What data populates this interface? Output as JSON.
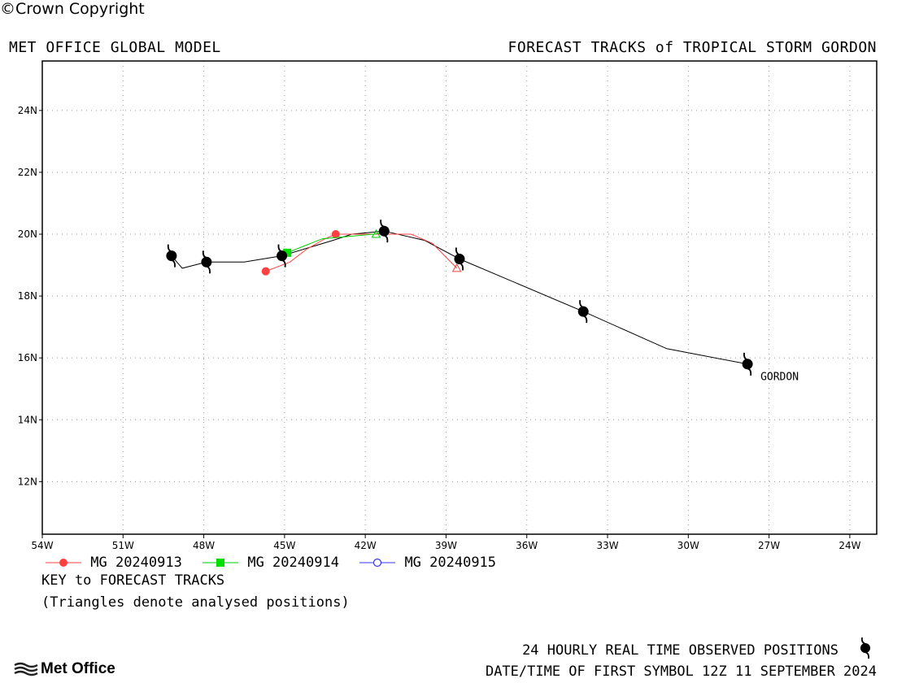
{
  "header": {
    "left_title": "MET OFFICE GLOBAL MODEL",
    "right_title": "FORECAST TRACKS of TROPICAL STORM GORDON"
  },
  "chart_data": {
    "type": "line",
    "xlim": [
      -54,
      -23
    ],
    "ylim": [
      10.3,
      25.6
    ],
    "x_ticks": [
      -54,
      -51,
      -48,
      -45,
      -42,
      -39,
      -36,
      -33,
      -30,
      -27,
      -24
    ],
    "x_tick_labels": [
      "54W",
      "51W",
      "48W",
      "45W",
      "42W",
      "39W",
      "36W",
      "33W",
      "30W",
      "27W",
      "24W"
    ],
    "y_ticks": [
      12,
      14,
      16,
      18,
      20,
      22,
      24
    ],
    "y_tick_labels": [
      "12N",
      "14N",
      "16N",
      "18N",
      "20N",
      "22N",
      "24N"
    ],
    "grid": true,
    "observed_track": {
      "name": "GORDON",
      "color": "#000000",
      "line": [
        [
          -27.8,
          15.8
        ],
        [
          -30.8,
          16.3
        ],
        [
          -33.9,
          17.5
        ],
        [
          -38.5,
          19.2
        ],
        [
          -39.8,
          19.8
        ],
        [
          -41.3,
          20.1
        ],
        [
          -42.5,
          20.0
        ],
        [
          -43.2,
          19.8
        ],
        [
          -45.1,
          19.3
        ],
        [
          -46.5,
          19.1
        ],
        [
          -47.9,
          19.1
        ],
        [
          -48.8,
          18.9
        ],
        [
          -49.2,
          19.3
        ]
      ],
      "symbols": [
        [
          -27.8,
          15.8
        ],
        [
          -33.9,
          17.5
        ],
        [
          -38.5,
          19.2
        ],
        [
          -41.3,
          20.1
        ],
        [
          -45.1,
          19.3
        ],
        [
          -47.9,
          19.1
        ],
        [
          -49.2,
          19.3
        ]
      ]
    },
    "series": [
      {
        "name": "MG 20240913",
        "color": "#ff4040",
        "marker": "circle",
        "points": [
          [
            -45.7,
            18.8
          ],
          [
            -44.8,
            19.1
          ],
          [
            -44.2,
            19.5
          ],
          [
            -43.5,
            19.85
          ],
          [
            -43.1,
            20.0
          ],
          [
            -42.1,
            20.0
          ],
          [
            -40.3,
            20.0
          ],
          [
            -39.5,
            19.7
          ],
          [
            -38.6,
            18.9
          ]
        ],
        "markers": [
          [
            -45.7,
            18.8
          ],
          [
            -43.1,
            20.0
          ]
        ],
        "analysed": [
          [
            -38.6,
            18.9
          ]
        ]
      },
      {
        "name": "MG 20240914",
        "color": "#00cc00",
        "marker": "square",
        "points": [
          [
            -44.9,
            19.4
          ],
          [
            -43.6,
            19.85
          ],
          [
            -41.7,
            20.0
          ],
          [
            -41.3,
            20.05
          ]
        ],
        "markers": [
          [
            -44.9,
            19.4
          ]
        ],
        "analysed": [
          [
            -41.6,
            20.0
          ]
        ]
      },
      {
        "name": "MG 20240915",
        "color": "#3333ff",
        "marker": "open-circle",
        "points": [],
        "markers": [],
        "analysed": []
      }
    ],
    "annotations": [
      {
        "text": "GORDON",
        "x": -27.5,
        "y": 15.6
      }
    ]
  },
  "key": {
    "title": "KEY to FORECAST TRACKS",
    "note": "(Triangles denote analysed positions)"
  },
  "footer": {
    "observed_label": "24 HOURLY REAL TIME OBSERVED POSITIONS",
    "datetime_label": "DATE/TIME OF FIRST SYMBOL 12Z 11 SEPTEMBER 2024",
    "logo_text": "Met Office",
    "copyright": "©Crown Copyright"
  }
}
